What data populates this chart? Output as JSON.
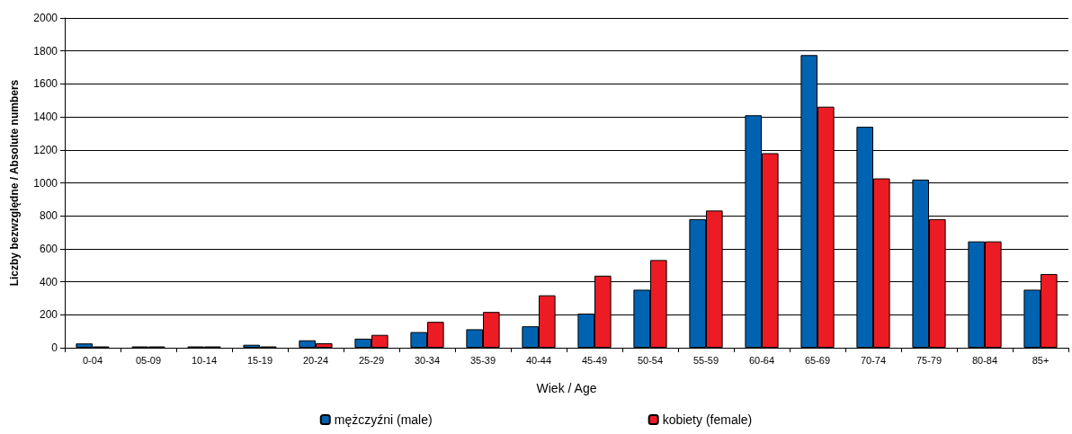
{
  "chart_data": {
    "type": "bar",
    "xlabel": "Wiek / Age",
    "ylabel": "Liczby bezwzględne / Absolute numbers",
    "categories": [
      "0-04",
      "05-09",
      "10-14",
      "15-19",
      "20-24",
      "25-29",
      "30-34",
      "35-39",
      "40-44",
      "45-49",
      "50-54",
      "55-59",
      "60-64",
      "65-69",
      "70-74",
      "75-79",
      "80-84",
      "85+"
    ],
    "series": [
      {
        "name": "mężczyźni (male)",
        "color": "#0063b1",
        "values": [
          26,
          8,
          8,
          18,
          45,
          55,
          95,
          112,
          130,
          207,
          352,
          780,
          1410,
          1775,
          1340,
          1020,
          645,
          352
        ]
      },
      {
        "name": "kobiety (female)",
        "color": "#ed1c24",
        "values": [
          8,
          8,
          8,
          8,
          27,
          78,
          157,
          217,
          318,
          437,
          532,
          832,
          1180,
          1462,
          1027,
          780,
          645,
          447
        ]
      }
    ],
    "ylim": [
      0,
      2000
    ],
    "yticks": [
      0,
      200,
      400,
      600,
      800,
      1000,
      1200,
      1400,
      1600,
      1800,
      2000
    ],
    "grid": "y",
    "legend": "bottom"
  }
}
